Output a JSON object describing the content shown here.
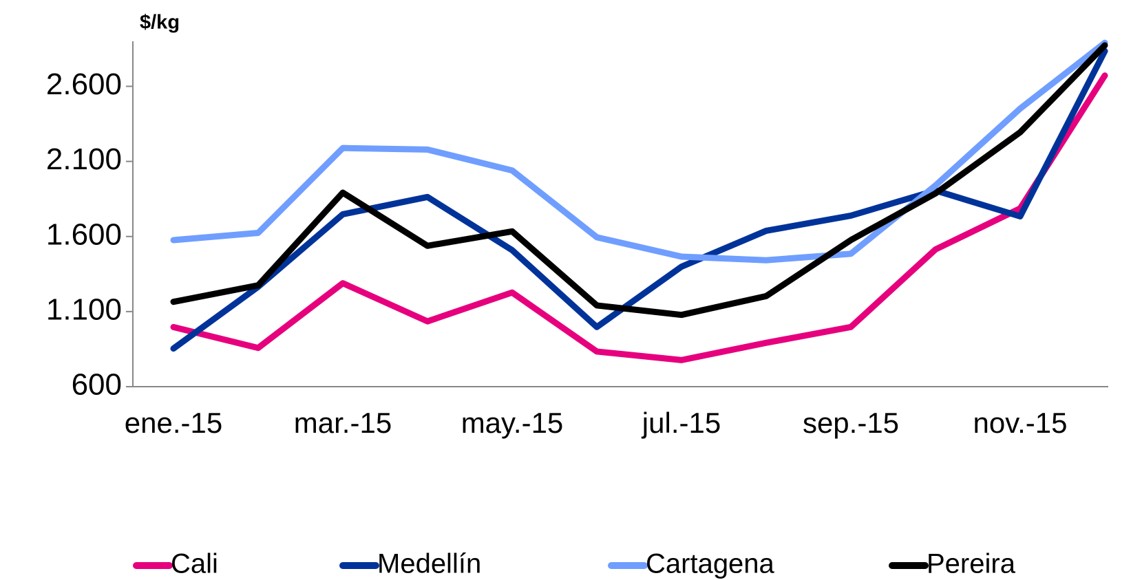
{
  "chart_data": {
    "type": "line",
    "y_label": "$/kg",
    "categories": [
      "ene.-15",
      null,
      "mar.-15",
      null,
      "may.-15",
      null,
      "jul.-15",
      null,
      "sep.-15",
      null,
      "nov.-15",
      null
    ],
    "series": [
      {
        "name": "Cali",
        "color": "#e6007e",
        "values": [
          997,
          858,
          1289,
          1035,
          1227,
          834,
          777,
          892,
          997,
          1514,
          1787,
          2672
        ]
      },
      {
        "name": "Medellín",
        "color": "#003399",
        "values": [
          854,
          1265,
          1748,
          1863,
          1509,
          997,
          1399,
          1638,
          1739,
          1906,
          1734,
          2835
        ]
      },
      {
        "name": "Cartagena",
        "color": "#6f9eff",
        "values": [
          1576,
          1624,
          2189,
          2179,
          2040,
          1595,
          1466,
          1442,
          1485,
          1940,
          2452,
          2890
        ]
      },
      {
        "name": "Pereira",
        "color": "#000000",
        "values": [
          1165,
          1275,
          1892,
          1538,
          1634,
          1141,
          1078,
          1203,
          1576,
          1887,
          2294,
          2873
        ]
      }
    ],
    "ylim": [
      600,
      2900
    ],
    "yticks": [
      {
        "value": 600,
        "label": "600"
      },
      {
        "value": 1100,
        "label": "1.100"
      },
      {
        "value": 1600,
        "label": "1.600"
      },
      {
        "value": 2100,
        "label": "2.100"
      },
      {
        "value": 2600,
        "label": "2.600"
      }
    ],
    "grid": false
  }
}
